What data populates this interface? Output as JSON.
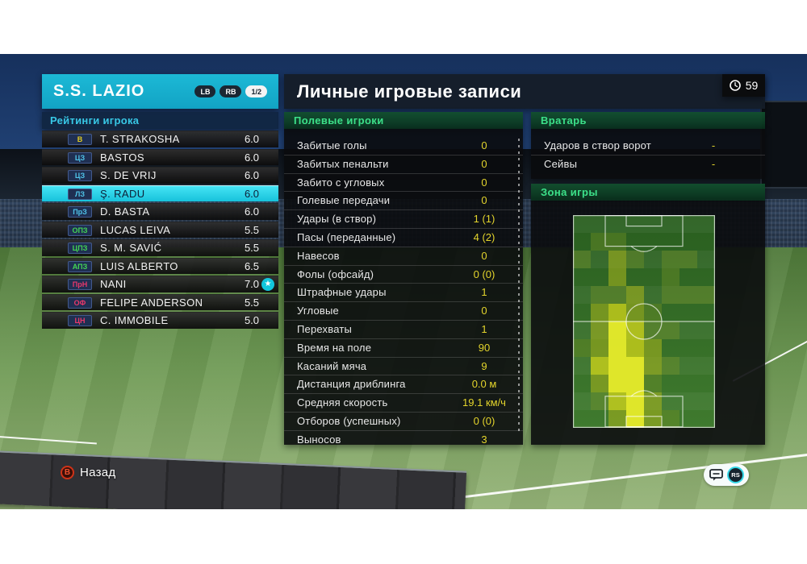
{
  "colors": {
    "accent_cyan": "#17b3d1",
    "selected_row_cyan": "#2bd9f0",
    "value_yellow": "#e3d42c",
    "section_green_text": "#3ce089",
    "pos_gk": "#e0cb25",
    "pos_df": "#4fc3e8",
    "pos_mf": "#43d454",
    "pos_fw": "#e8386a"
  },
  "team_panel": {
    "team_name": "S.S. LAZIO",
    "lb_label": "LB",
    "rb_label": "RB",
    "page_indicator": "1/2",
    "section_title": "Рейтинги игрока",
    "players": [
      {
        "pos": "В",
        "role": "gk",
        "name": "T. STRAKOSHA",
        "rating": "6.0",
        "selected": false,
        "star": false
      },
      {
        "pos": "ЦЗ",
        "role": "df",
        "name": "BASTOS",
        "rating": "6.0",
        "selected": false,
        "star": false
      },
      {
        "pos": "ЦЗ",
        "role": "df",
        "name": "S. DE VRIJ",
        "rating": "6.0",
        "selected": false,
        "star": false
      },
      {
        "pos": "ЛЗ",
        "role": "df",
        "name": "Ş. RADU",
        "rating": "6.0",
        "selected": true,
        "star": false
      },
      {
        "pos": "ПрЗ",
        "role": "df",
        "name": "D. BASTA",
        "rating": "6.0",
        "selected": false,
        "star": false
      },
      {
        "pos": "ОПЗ",
        "role": "mf",
        "name": "LUCAS LEIVA",
        "rating": "5.5",
        "selected": false,
        "star": false
      },
      {
        "pos": "ЦПЗ",
        "role": "mf",
        "name": "S. M. SAVIĆ",
        "rating": "5.5",
        "selected": false,
        "star": false
      },
      {
        "pos": "АПЗ",
        "role": "mf",
        "name": "LUIS ALBERTO",
        "rating": "6.5",
        "selected": false,
        "star": false
      },
      {
        "pos": "ПрН",
        "role": "fw",
        "name": "NANI",
        "rating": "7.0",
        "selected": false,
        "star": true
      },
      {
        "pos": "ОФ",
        "role": "fw",
        "name": "FELIPE ANDERSON",
        "rating": "5.5",
        "selected": false,
        "star": false
      },
      {
        "pos": "ЦН",
        "role": "fw",
        "name": "C. IMMOBILE",
        "rating": "5.0",
        "selected": false,
        "star": false
      }
    ]
  },
  "main_panel": {
    "title": "Личные игровые записи",
    "match_time": "59",
    "field_players": {
      "title": "Полевые игроки",
      "stats": [
        {
          "label": "Забитые голы",
          "value": "0"
        },
        {
          "label": "Забитых пенальти",
          "value": "0"
        },
        {
          "label": "Забито с угловых",
          "value": "0"
        },
        {
          "label": "Голевые передачи",
          "value": "0"
        },
        {
          "label": "Удары (в створ)",
          "value": "1 (1)"
        },
        {
          "label": "Пасы (переданные)",
          "value": "4 (2)"
        },
        {
          "label": "Навесов",
          "value": "0"
        },
        {
          "label": "Фолы (офсайд)",
          "value": "0 (0)"
        },
        {
          "label": "Штрафные удары",
          "value": "1"
        },
        {
          "label": "Угловые",
          "value": "0"
        },
        {
          "label": "Перехваты",
          "value": "1"
        },
        {
          "label": "Время на поле",
          "value": "90"
        },
        {
          "label": "Касаний мяча",
          "value": "9"
        },
        {
          "label": "Дистанция дриблинга",
          "value": "0.0 м"
        },
        {
          "label": "Средняя скорость",
          "value": "19.1 км/ч"
        },
        {
          "label": "Отборов (успешных)",
          "value": "0 (0)"
        },
        {
          "label": "Выносов",
          "value": "3"
        }
      ]
    },
    "goalkeeper": {
      "title": "Вратарь",
      "stats": [
        {
          "label": "Ударов в створ ворот",
          "value": "-"
        },
        {
          "label": "Сейвы",
          "value": "-"
        }
      ]
    },
    "play_zone": {
      "title": "Зона игры",
      "heatmap": {
        "cols": 8,
        "rows": 12,
        "intensity_colors": [
          "transparent",
          "rgba(120,150,40,0.38)",
          "rgba(165,180,30,0.58)",
          "rgba(205,212,25,0.78)",
          "rgba(232,236,42,0.95)"
        ],
        "grid": [
          [
            0,
            0,
            0,
            0,
            0,
            0,
            0,
            0
          ],
          [
            0,
            1,
            1,
            0,
            0,
            0,
            0,
            0
          ],
          [
            1,
            0,
            2,
            1,
            0,
            1,
            1,
            0
          ],
          [
            0,
            0,
            2,
            0,
            0,
            1,
            0,
            0
          ],
          [
            0,
            1,
            1,
            2,
            0,
            1,
            1,
            1
          ],
          [
            0,
            2,
            3,
            2,
            1,
            0,
            0,
            0
          ],
          [
            0,
            2,
            4,
            3,
            1,
            1,
            0,
            0
          ],
          [
            1,
            2,
            4,
            3,
            2,
            0,
            0,
            0
          ],
          [
            0,
            3,
            4,
            4,
            2,
            1,
            0,
            0
          ],
          [
            0,
            2,
            4,
            4,
            1,
            0,
            0,
            0
          ],
          [
            0,
            1,
            3,
            4,
            2,
            0,
            0,
            0
          ],
          [
            0,
            0,
            2,
            4,
            2,
            1,
            0,
            0
          ]
        ]
      }
    }
  },
  "footer": {
    "back_button": "B",
    "back_label": "Назад"
  }
}
